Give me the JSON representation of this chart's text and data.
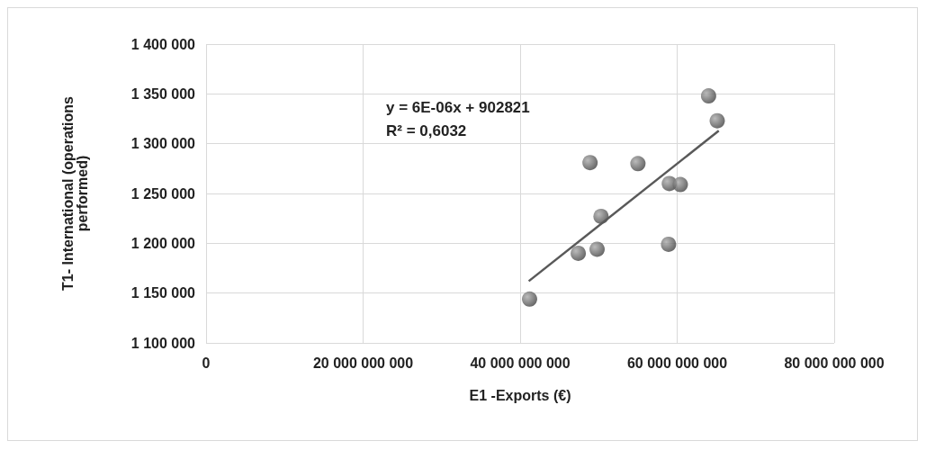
{
  "chart_data": {
    "type": "scatter",
    "xlabel": "E1 -Exports (€)",
    "ylabel": "T1- International (operations performed)",
    "x": [
      64000000000,
      65100000000,
      48900000000,
      55000000000,
      59000000000,
      60400000000,
      50300000000,
      58900000000,
      47400000000,
      49800000000,
      41200000000
    ],
    "series": [
      {
        "color": "#404040",
        "marker": "circle",
        "values": [
          1348000,
          1323000,
          1281000,
          1280000,
          1260000,
          1259000,
          1227000,
          1199000,
          1190000,
          1194000,
          1144000
        ]
      },
      {
        "type": "line",
        "color": "#595959",
        "x": [
          41100000000,
          65300000000
        ],
        "values": [
          1162000,
          1313000
        ]
      }
    ],
    "annotations": [
      "y = 6E-06x + 902821",
      "R² = 0,6032"
    ],
    "xlim": [
      0,
      80000000000
    ],
    "xticks": [
      0,
      20000000000,
      40000000000,
      60000000000,
      80000000000
    ],
    "ylim": [
      1100000,
      1400000
    ],
    "yticks": [
      1100000,
      1150000,
      1200000,
      1250000,
      1300000,
      1350000,
      1400000
    ],
    "grid": true
  }
}
